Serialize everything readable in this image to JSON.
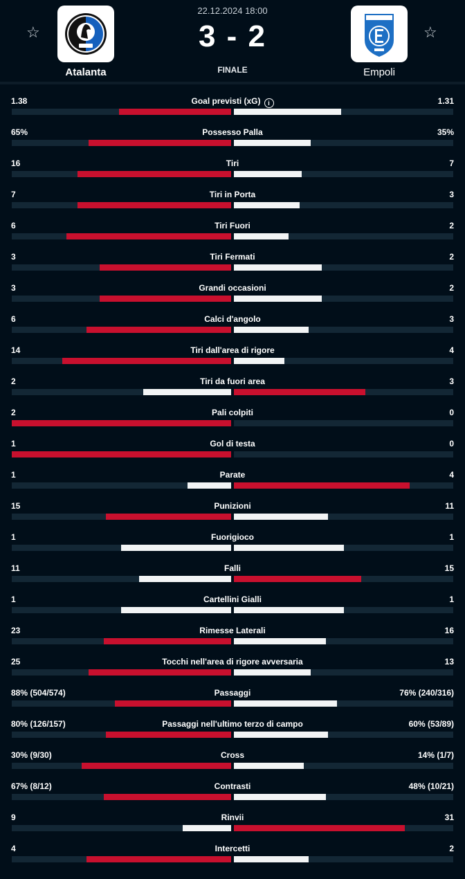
{
  "match": {
    "date": "22.12.2024 18:00",
    "score": "3 - 2",
    "status": "FINALE",
    "home_team": "Atalanta",
    "away_team": "Empoli",
    "home_logo_icon": "atalanta-crest-icon",
    "away_logo_icon": "empoli-crest-icon",
    "favorite_icon": "star-outline-icon"
  },
  "colors": {
    "background": "#010e19",
    "leader_bar": "#c8102e",
    "other_bar": "#f2f4f5",
    "track": "#132735"
  },
  "stats": [
    {
      "label": "Goal previsti (xG)",
      "home": "1.38",
      "away": "1.31",
      "home_share": 0.51,
      "away_share": 0.49,
      "leader": "home",
      "info": true
    },
    {
      "label": "Possesso Palla",
      "home": "65%",
      "away": "35%",
      "home_share": 0.65,
      "away_share": 0.35,
      "leader": "home"
    },
    {
      "label": "Tiri",
      "home": "16",
      "away": "7",
      "home_share": 0.7,
      "away_share": 0.31,
      "leader": "home"
    },
    {
      "label": "Tiri in Porta",
      "home": "7",
      "away": "3",
      "home_share": 0.7,
      "away_share": 0.3,
      "leader": "home"
    },
    {
      "label": "Tiri Fuori",
      "home": "6",
      "away": "2",
      "home_share": 0.75,
      "away_share": 0.25,
      "leader": "home"
    },
    {
      "label": "Tiri Fermati",
      "home": "3",
      "away": "2",
      "home_share": 0.6,
      "away_share": 0.4,
      "leader": "home"
    },
    {
      "label": "Grandi occasioni",
      "home": "3",
      "away": "2",
      "home_share": 0.6,
      "away_share": 0.4,
      "leader": "home"
    },
    {
      "label": "Calci d'angolo",
      "home": "6",
      "away": "3",
      "home_share": 0.66,
      "away_share": 0.34,
      "leader": "home"
    },
    {
      "label": "Tiri dall'area di rigore",
      "home": "14",
      "away": "4",
      "home_share": 0.77,
      "away_share": 0.23,
      "leader": "home"
    },
    {
      "label": "Tiri da fuori area",
      "home": "2",
      "away": "3",
      "home_share": 0.4,
      "away_share": 0.6,
      "leader": "away"
    },
    {
      "label": "Pali colpiti",
      "home": "2",
      "away": "0",
      "home_share": 1.0,
      "away_share": 0.0,
      "leader": "home"
    },
    {
      "label": "Gol di testa",
      "home": "1",
      "away": "0",
      "home_share": 1.0,
      "away_share": 0.0,
      "leader": "home"
    },
    {
      "label": "Parate",
      "home": "1",
      "away": "4",
      "home_share": 0.2,
      "away_share": 0.8,
      "leader": "away"
    },
    {
      "label": "Punizioni",
      "home": "15",
      "away": "11",
      "home_share": 0.57,
      "away_share": 0.43,
      "leader": "home"
    },
    {
      "label": "Fuorigioco",
      "home": "1",
      "away": "1",
      "home_share": 0.5,
      "away_share": 0.5,
      "leader": "none"
    },
    {
      "label": "Falli",
      "home": "11",
      "away": "15",
      "home_share": 0.42,
      "away_share": 0.58,
      "leader": "away"
    },
    {
      "label": "Cartellini Gialli",
      "home": "1",
      "away": "1",
      "home_share": 0.5,
      "away_share": 0.5,
      "leader": "none"
    },
    {
      "label": "Rimesse Laterali",
      "home": "23",
      "away": "16",
      "home_share": 0.58,
      "away_share": 0.42,
      "leader": "home"
    },
    {
      "label": "Tocchi nell'area di rigore avversaria",
      "home": "25",
      "away": "13",
      "home_share": 0.65,
      "away_share": 0.35,
      "leader": "home"
    },
    {
      "label": "Passaggi",
      "home": "88% (504/574)",
      "away": "76% (240/316)",
      "home_share": 0.53,
      "away_share": 0.47,
      "leader": "home"
    },
    {
      "label": "Passaggi nell'ultimo terzo di campo",
      "home": "80% (126/157)",
      "away": "60% (53/89)",
      "home_share": 0.57,
      "away_share": 0.43,
      "leader": "home"
    },
    {
      "label": "Cross",
      "home": "30% (9/30)",
      "away": "14% (1/7)",
      "home_share": 0.68,
      "away_share": 0.32,
      "leader": "home"
    },
    {
      "label": "Contrasti",
      "home": "67% (8/12)",
      "away": "48% (10/21)",
      "home_share": 0.58,
      "away_share": 0.42,
      "leader": "home"
    },
    {
      "label": "Rinvii",
      "home": "9",
      "away": "31",
      "home_share": 0.22,
      "away_share": 0.78,
      "leader": "away"
    },
    {
      "label": "Intercetti",
      "home": "4",
      "away": "2",
      "home_share": 0.66,
      "away_share": 0.34,
      "leader": "home"
    }
  ]
}
